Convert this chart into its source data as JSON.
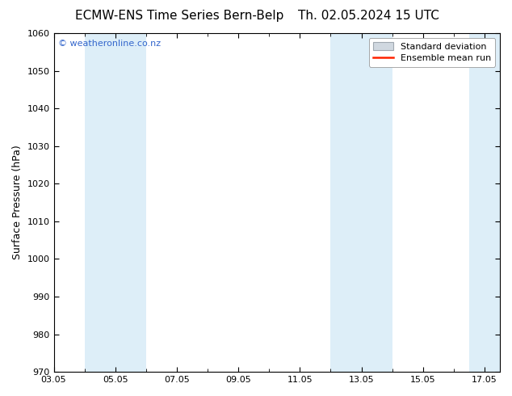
{
  "title_left": "ECMW-ENS Time Series Bern-Belp",
  "title_right": "Th. 02.05.2024 15 UTC",
  "ylabel": "Surface Pressure (hPa)",
  "ymin": 970,
  "ymax": 1060,
  "ytick_step": 10,
  "x_labels": [
    "03.05",
    "05.05",
    "07.05",
    "09.05",
    "11.05",
    "13.05",
    "15.05",
    "17.05"
  ],
  "x_positions": [
    0.0,
    2.0,
    4.0,
    6.0,
    8.0,
    10.0,
    12.0,
    14.0
  ],
  "x_minor_positions": [
    1.0,
    3.0,
    5.0,
    7.0,
    9.0,
    11.0,
    13.0
  ],
  "x_min": 0.0,
  "x_max": 14.5,
  "shade_bands": [
    {
      "x_start": 1.0,
      "x_end": 3.0
    },
    {
      "x_start": 9.0,
      "x_end": 11.0
    },
    {
      "x_start": 13.5,
      "x_end": 14.5
    }
  ],
  "shade_color": "#ddeef8",
  "background_color": "#ffffff",
  "plot_bg_color": "#ffffff",
  "watermark": "© weatheronline.co.nz",
  "watermark_color": "#3366cc",
  "legend_std_facecolor": "#d0d8e0",
  "legend_std_edgecolor": "#a0a8b0",
  "legend_mean_color": "#ff2200",
  "title_fontsize": 11,
  "axis_label_fontsize": 9,
  "tick_fontsize": 8,
  "watermark_fontsize": 8,
  "legend_fontsize": 8
}
